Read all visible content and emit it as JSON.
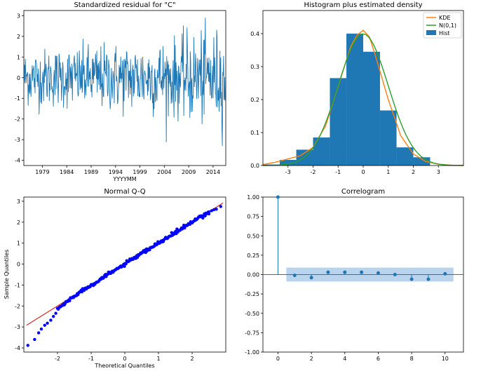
{
  "colors": {
    "primary": "#1f77b4",
    "kde": "#ff7f0e",
    "normal": "#2ca02c",
    "qq_line": "#d62728",
    "qq_points": "#0000ff",
    "band": "#a9c9e8"
  },
  "chart_data": [
    {
      "type": "line",
      "title": "Standardized residual for \"C\"",
      "xlabel": "YYYYMM",
      "ylabel": "",
      "xlim": [
        1975.2,
        2016.6
      ],
      "ylim": [
        -4.25,
        3.25
      ],
      "xticks": [
        "1979",
        "1984",
        "1989",
        "1994",
        "1999",
        "2004",
        "2009",
        "2014"
      ],
      "yticks": [
        "-4",
        "-3",
        "-2",
        "-1",
        "0",
        "1",
        "2",
        "3"
      ],
      "series": [
        {
          "x_start": 1975.25,
          "x_step": 0.0833,
          "count": 496,
          "values_note": ""
        }
      ],
      "approx_min": -3.8,
      "approx_max": 2.9
    },
    {
      "type": "area",
      "title": "Histogram plus estimated density",
      "xlim": [
        -4,
        4
      ],
      "ylim": [
        0,
        0.41
      ],
      "xticks": [
        "-3",
        "-2",
        "-1",
        "0",
        "1",
        "2",
        "3"
      ],
      "yticks": [
        "0.0",
        "0.1",
        "0.2",
        "0.3",
        "0.4"
      ],
      "legend": {
        "placement": "top-right",
        "entries": [
          "KDE",
          "N(0,1)",
          "Hist"
        ]
      },
      "hist": {
        "edges": [
          -4.0,
          -3.33,
          -2.67,
          -2.0,
          -1.33,
          -0.67,
          0.0,
          0.67,
          1.33,
          2.0,
          2.67,
          3.33
        ],
        "heights": [
          0.003,
          0.017,
          0.048,
          0.085,
          0.265,
          0.4,
          0.345,
          0.167,
          0.055,
          0.025,
          0.0
        ]
      },
      "kde": {
        "x": [
          -4,
          -3.5,
          -3,
          -2.5,
          -2,
          -1.5,
          -1,
          -0.5,
          -0.25,
          0,
          0.25,
          0.5,
          1,
          1.5,
          2,
          2.5,
          3,
          3.5,
          4
        ],
        "y": [
          0.003,
          0.01,
          0.02,
          0.03,
          0.055,
          0.12,
          0.24,
          0.36,
          0.395,
          0.41,
          0.39,
          0.33,
          0.2,
          0.09,
          0.035,
          0.012,
          0.004,
          0.001,
          0.0
        ]
      },
      "normal": {
        "mean": 0,
        "sd": 1
      }
    },
    {
      "type": "scatter",
      "title": "Normal Q-Q",
      "xlabel": "Theoretical Quantiles",
      "ylabel": "Sample Quantiles",
      "xlim": [
        -3.0,
        3.0
      ],
      "ylim": [
        -4.2,
        3.2
      ],
      "xticks": [
        "-2",
        "-1",
        "0",
        "1",
        "2"
      ],
      "yticks": [
        "-4",
        "-3",
        "-2",
        "-1",
        "0",
        "1",
        "2",
        "3"
      ],
      "reference_line": {
        "slope": 1,
        "intercept": 0
      },
      "tail_points": [
        [
          -2.88,
          -3.88
        ],
        [
          -2.68,
          -3.6
        ],
        [
          -2.56,
          -3.28
        ],
        [
          -2.48,
          -3.1
        ],
        [
          -2.38,
          -2.92
        ],
        [
          -2.3,
          -2.82
        ],
        [
          -2.2,
          -2.68
        ],
        [
          -2.12,
          -2.5
        ],
        [
          -2.05,
          -2.35
        ],
        [
          2.5,
          2.4
        ],
        [
          2.58,
          2.55
        ],
        [
          2.65,
          2.6
        ],
        [
          2.72,
          2.62
        ],
        [
          2.85,
          2.75
        ]
      ]
    },
    {
      "type": "line",
      "title": "Correlogram",
      "xlim": [
        -0.9,
        11.1
      ],
      "ylim": [
        -1.0,
        1.0
      ],
      "xticks": [
        "0",
        "2",
        "4",
        "6",
        "8",
        "10"
      ],
      "yticks": [
        "-1.00",
        "-0.75",
        "-0.50",
        "-0.25",
        "0.00",
        "0.25",
        "0.50",
        "0.75",
        "1.00"
      ],
      "lags": [
        0,
        1,
        2,
        3,
        4,
        5,
        6,
        7,
        8,
        9,
        10
      ],
      "acf": [
        1.0,
        -0.01,
        -0.04,
        0.03,
        0.03,
        0.03,
        0.02,
        0.0,
        -0.06,
        -0.06,
        0.01
      ],
      "confidence_band": [
        -0.09,
        0.09
      ]
    }
  ]
}
